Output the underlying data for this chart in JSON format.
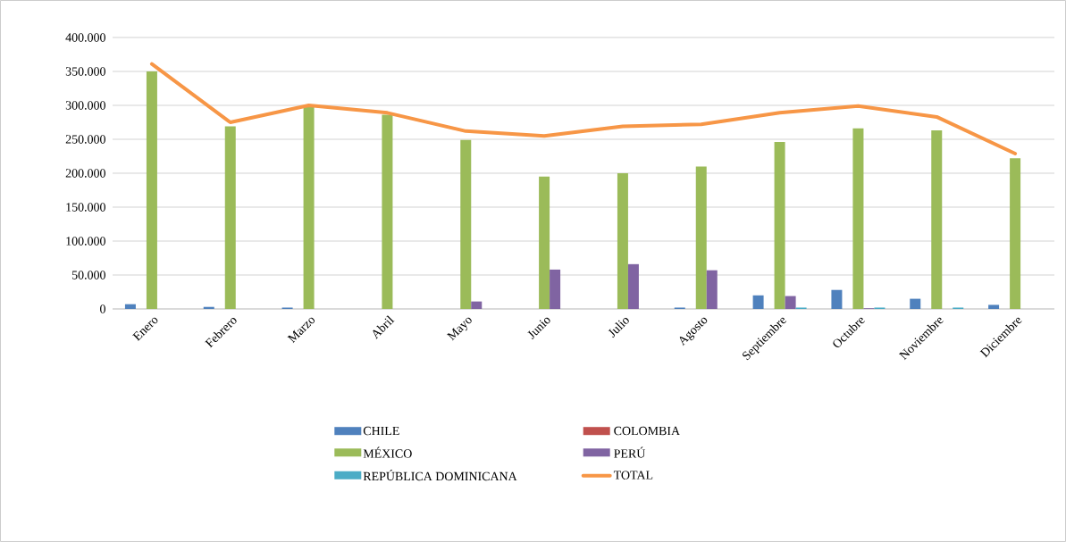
{
  "chart_data": {
    "type": "bar",
    "categories": [
      "Enero",
      "Febrero",
      "Marzo",
      "Abril",
      "Mayo",
      "Junio",
      "Julio",
      "Agosto",
      "Septiembre",
      "Octubre",
      "Noviembre",
      "Diciembre"
    ],
    "series": [
      {
        "name": "CHILE",
        "color": "#4f81bd",
        "values": [
          7000,
          3000,
          2000,
          null,
          0,
          0,
          0,
          2000,
          20000,
          28000,
          15000,
          6000
        ]
      },
      {
        "name": "COLOMBIA",
        "color": "#c0504d",
        "values": [
          0,
          0,
          0,
          0,
          0,
          0,
          0,
          0,
          0,
          0,
          0,
          0
        ]
      },
      {
        "name": "MÉXICO",
        "color": "#9bbb59",
        "values": [
          350000,
          269000,
          298000,
          286000,
          249000,
          195000,
          200000,
          210000,
          246000,
          266000,
          263000,
          222000
        ]
      },
      {
        "name": "PERÚ",
        "color": "#8064a2",
        "values": [
          0,
          0,
          0,
          0,
          11000,
          58000,
          66000,
          57000,
          19000,
          1000,
          0,
          0
        ]
      },
      {
        "name": "REPÚBLICA DOMINICANA",
        "color": "#4bacc6",
        "values": [
          0,
          0,
          0,
          0,
          0,
          0,
          0,
          0,
          2000,
          2000,
          2000,
          0
        ]
      },
      {
        "name": "TOTAL",
        "type": "line",
        "color": "#f79646",
        "values": [
          361000,
          275000,
          300000,
          289000,
          262000,
          255000,
          269000,
          272000,
          289000,
          299000,
          283000,
          229000
        ]
      }
    ],
    "ylim": [
      0,
      400000
    ],
    "yticks": [
      0,
      {
        "value": 50000,
        "label": "50.000"
      },
      {
        "value": 100000,
        "label": "100.000"
      },
      {
        "value": 150000,
        "label": "150.000"
      },
      {
        "value": 200000,
        "label": "200.000"
      },
      {
        "value": 250000,
        "label": "250.000"
      },
      {
        "value": 300000,
        "label": "300.000"
      },
      {
        "value": 350000,
        "label": "350.000"
      },
      {
        "value": 400000,
        "label": "400.000"
      }
    ],
    "grid": "y",
    "legend": "bottom"
  }
}
